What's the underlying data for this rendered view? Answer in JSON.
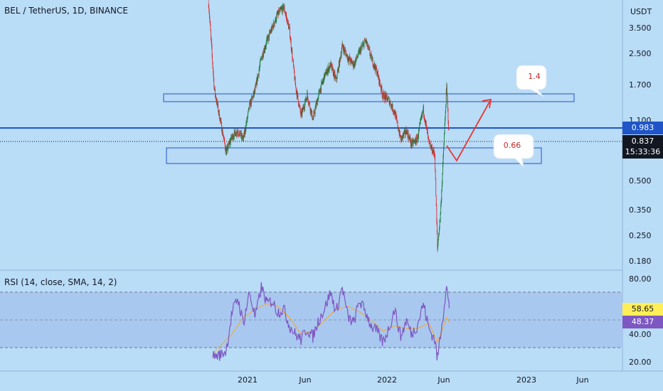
{
  "header": {
    "title": "BEL / TetherUS, 1D, BINANCE",
    "unit": "USDT"
  },
  "rsi_header": {
    "title": "RSI (14, close, SMA, 14, 2)"
  },
  "price_axis": {
    "ticks": [
      "3.500",
      "2.500",
      "1.700",
      "1.100",
      "0.500",
      "0.350",
      "0.250",
      "0.180"
    ]
  },
  "rsi_axis": {
    "ticks": [
      "80.00",
      "40.00",
      "20.00"
    ]
  },
  "time_axis": {
    "ticks": [
      "2021",
      "Jun",
      "2022",
      "Jun",
      "2023",
      "Jun"
    ]
  },
  "tags": {
    "line_price": "0.983",
    "last_price": "0.837",
    "countdown": "15:33:36",
    "rsi_value": "58.65",
    "rsi_sma": "48.37"
  },
  "callouts": {
    "target_up": "1.4",
    "target_down": "0.66"
  },
  "colors": {
    "background": "#b9dcf7",
    "up_candle": "#1b7a3a",
    "down_candle": "#d32f2f",
    "line": "#1f55c8",
    "arrow": "#e53935",
    "rsi_line": "#7e57c2",
    "rsi_sma": "#f9a825",
    "rsi_band": "#a9c8ef"
  },
  "chart_data": [
    {
      "type": "candlestick",
      "title": "BEL / TetherUS, 1D, BINANCE",
      "y_scale": "log",
      "y_unit": "USDT",
      "ylim": [
        0.16,
        5.0
      ],
      "xlim": [
        "2020-09-01",
        "2023-09-01"
      ],
      "x_ticks": [
        "2021",
        "Jun",
        "2022",
        "Jun",
        "2023",
        "Jun"
      ],
      "series": [
        {
          "type": "line",
          "x": [
            "2020-09-20",
            "2020-10-05",
            "2020-10-20",
            "2020-11-05",
            "2020-11-20",
            "2020-12-05",
            "2020-12-20",
            "2021-01-05",
            "2021-01-20",
            "2021-02-05",
            "2021-02-20",
            "2021-03-05",
            "2021-03-20",
            "2021-04-05",
            "2021-04-20",
            "2021-05-05",
            "2021-05-20",
            "2021-06-05",
            "2021-06-20",
            "2021-07-05",
            "2021-07-20",
            "2021-08-05",
            "2021-08-20",
            "2021-09-05",
            "2021-09-20",
            "2021-10-05",
            "2021-10-20",
            "2021-11-05",
            "2021-11-20",
            "2021-12-05",
            "2021-12-20",
            "2022-01-05",
            "2022-01-20",
            "2022-02-05",
            "2022-02-20",
            "2022-03-05",
            "2022-03-20",
            "2022-04-05",
            "2022-04-20",
            "2022-05-05",
            "2022-05-12",
            "2022-05-20",
            "2022-06-05",
            "2022-06-12"
          ],
          "values": [
            4.8,
            1.6,
            1.1,
            0.72,
            0.88,
            0.95,
            0.85,
            1.3,
            1.6,
            2.4,
            3.0,
            3.5,
            4.2,
            4.6,
            3.4,
            1.7,
            1.15,
            1.5,
            1.1,
            1.5,
            1.9,
            2.2,
            1.8,
            2.8,
            2.4,
            2.2,
            2.6,
            3.0,
            2.4,
            2.0,
            1.5,
            1.4,
            1.2,
            0.85,
            0.95,
            0.8,
            0.85,
            1.25,
            0.8,
            0.7,
            0.21,
            0.33,
            1.65,
            0.837
          ]
        }
      ],
      "levels": [
        {
          "type": "horizontal_line",
          "value": 0.983
        },
        {
          "type": "zone",
          "from": 1.35,
          "to": 1.5,
          "start": "2020-09-20",
          "end": "2022-11-15"
        },
        {
          "type": "zone",
          "from": 0.62,
          "to": 0.75,
          "start": "2020-09-20",
          "end": "2022-11-15"
        }
      ],
      "projection": {
        "points": [
          [
            "2022-06-10",
            0.9
          ],
          [
            "2022-06-25",
            0.66
          ],
          [
            "2022-08-10",
            1.4
          ]
        ],
        "labels": [
          "1.4",
          "0.66"
        ]
      },
      "last_price": 0.837
    },
    {
      "type": "line",
      "title": "RSI (14, close, SMA, 14, 2)",
      "ylim": [
        15,
        85
      ],
      "bands": [
        30,
        50,
        70
      ],
      "series": [
        {
          "name": "RSI",
          "x": [
            "2020-10-01",
            "2020-10-20",
            "2020-11-05",
            "2020-11-20",
            "2020-12-05",
            "2020-12-20",
            "2021-01-05",
            "2021-01-20",
            "2021-02-05",
            "2021-02-20",
            "2021-03-05",
            "2021-03-20",
            "2021-04-05",
            "2021-04-20",
            "2021-05-05",
            "2021-05-20",
            "2021-06-05",
            "2021-06-20",
            "2021-07-05",
            "2021-07-20",
            "2021-08-05",
            "2021-08-20",
            "2021-09-05",
            "2021-09-20",
            "2021-10-05",
            "2021-10-20",
            "2021-11-05",
            "2021-11-20",
            "2021-12-05",
            "2021-12-20",
            "2022-01-05",
            "2022-01-20",
            "2022-02-05",
            "2022-02-20",
            "2022-03-05",
            "2022-03-20",
            "2022-04-05",
            "2022-04-20",
            "2022-05-05",
            "2022-05-12",
            "2022-05-20",
            "2022-06-05",
            "2022-06-12"
          ],
          "values": [
            24,
            25,
            28,
            55,
            66,
            48,
            70,
            52,
            74,
            62,
            64,
            56,
            58,
            46,
            40,
            36,
            44,
            38,
            50,
            58,
            70,
            56,
            74,
            52,
            48,
            64,
            56,
            46,
            42,
            34,
            44,
            58,
            38,
            50,
            40,
            46,
            62,
            44,
            36,
            22,
            40,
            74,
            58.65
          ]
        },
        {
          "name": "RSI-based MA",
          "x": [
            "2020-10-01",
            "2020-11-20",
            "2020-12-20",
            "2021-01-20",
            "2021-02-20",
            "2021-03-20",
            "2021-04-20",
            "2021-05-20",
            "2021-06-20",
            "2021-07-20",
            "2021-08-20",
            "2021-09-20",
            "2021-10-20",
            "2021-11-20",
            "2021-12-20",
            "2022-01-20",
            "2022-02-20",
            "2022-03-20",
            "2022-04-20",
            "2022-05-12",
            "2022-06-05",
            "2022-06-12"
          ],
          "values": [
            26,
            40,
            52,
            58,
            62,
            60,
            52,
            40,
            42,
            50,
            58,
            60,
            56,
            50,
            42,
            46,
            44,
            44,
            48,
            34,
            52,
            48.37
          ]
        }
      ]
    }
  ]
}
